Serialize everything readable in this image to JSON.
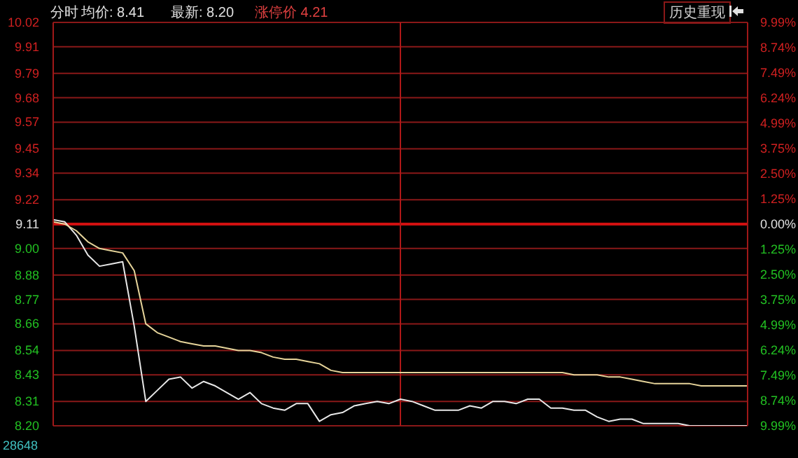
{
  "chart_data": {
    "type": "line",
    "title": "分时",
    "annotations": [
      "均价: 8.41",
      "最新: 8.20",
      "涨停价 4.21",
      "历史重现",
      "28648"
    ],
    "categories": [
      null,
      null,
      null,
      null,
      null,
      null,
      null,
      null,
      null,
      null,
      null,
      null,
      null,
      null,
      null,
      null,
      null,
      null,
      null,
      null,
      null,
      null,
      null,
      null,
      null,
      null,
      null,
      null,
      null,
      null,
      null,
      null,
      null,
      null,
      null,
      null,
      null,
      null,
      null,
      null,
      null,
      null,
      null,
      null,
      null,
      null,
      null,
      null,
      null,
      null,
      null,
      null,
      null,
      null,
      null,
      null,
      null,
      null,
      null,
      null,
      null
    ],
    "ylim": [
      8.2,
      10.02
    ],
    "yticks": [
      {
        "value": 8.2,
        "label": "8.20"
      },
      8.31,
      8.43,
      8.54,
      8.66,
      8.77,
      8.88,
      {
        "value": 9,
        "label": "9.00"
      },
      9.11,
      9.22,
      9.34,
      9.45,
      9.57,
      9.68,
      9.79,
      9.91,
      10.02
    ],
    "y2lim": [
      -9.99,
      9.99
    ],
    "y2ticks": [
      {
        "value": -9.99,
        "label": "9.99%"
      },
      {
        "value": -8.74,
        "label": "8.74%"
      },
      {
        "value": -7.49,
        "label": "7.49%"
      },
      {
        "value": -6.24,
        "label": "6.24%"
      },
      {
        "value": -4.99,
        "label": "4.99%"
      },
      {
        "value": -3.75,
        "label": "3.75%"
      },
      {
        "value": -2.5,
        "label": "2.50%"
      },
      {
        "value": -1.25,
        "label": "1.25%"
      },
      {
        "value": 0,
        "label": "0.00%"
      },
      {
        "value": 1.25,
        "label": "1.25%"
      },
      {
        "value": 2.5,
        "label": "2.50%"
      },
      {
        "value": 3.75,
        "label": "3.75%"
      },
      {
        "value": 4.99,
        "label": "4.99%"
      },
      {
        "value": 6.24,
        "label": "6.24%"
      },
      {
        "value": 7.49,
        "label": "7.49%"
      },
      {
        "value": 8.74,
        "label": "8.74%"
      },
      {
        "value": 9.99,
        "label": "9.99%"
      }
    ],
    "grid": "y",
    "marker": "none",
    "line_style": "solid",
    "ref_lines": [
      {
        "axis": "y",
        "value": 9.11,
        "color": "#d01010"
      }
    ],
    "series": [
      {
        "color": "#e8e8e8",
        "values": [
          9.13,
          9.12,
          9.06,
          8.97,
          8.92,
          8.93,
          8.94,
          8.65,
          8.31,
          8.36,
          8.41,
          8.42,
          8.37,
          8.4,
          8.38,
          8.35,
          8.32,
          8.35,
          8.3,
          8.28,
          8.27,
          8.3,
          8.3,
          8.22,
          8.25,
          8.26,
          8.29,
          8.3,
          8.31,
          8.3,
          8.32,
          8.31,
          8.29,
          8.27,
          8.27,
          8.27,
          8.29,
          8.28,
          8.31,
          8.31,
          8.3,
          8.32,
          8.32,
          8.28,
          8.28,
          8.27,
          8.27,
          8.24,
          8.22,
          8.23,
          8.23,
          8.21,
          8.21,
          8.21,
          8.21,
          8.2,
          8.2,
          8.2,
          8.2,
          8.2,
          8.2
        ]
      },
      {
        "color": "#e6d49a",
        "values": [
          9.12,
          9.11,
          9.08,
          9.03,
          9.0,
          8.99,
          8.98,
          8.9,
          8.66,
          8.62,
          8.6,
          8.58,
          8.57,
          8.56,
          8.56,
          8.55,
          8.54,
          8.54,
          8.53,
          8.51,
          8.5,
          8.5,
          8.49,
          8.48,
          8.45,
          8.44,
          8.44,
          8.44,
          8.44,
          8.44,
          8.44,
          8.44,
          8.44,
          8.44,
          8.44,
          8.44,
          8.44,
          8.44,
          8.44,
          8.44,
          8.44,
          8.44,
          8.44,
          8.44,
          8.44,
          8.43,
          8.43,
          8.43,
          8.42,
          8.42,
          8.41,
          8.4,
          8.39,
          8.39,
          8.39,
          8.39,
          8.38,
          8.38,
          8.38,
          8.38,
          8.38
        ]
      }
    ]
  }
}
